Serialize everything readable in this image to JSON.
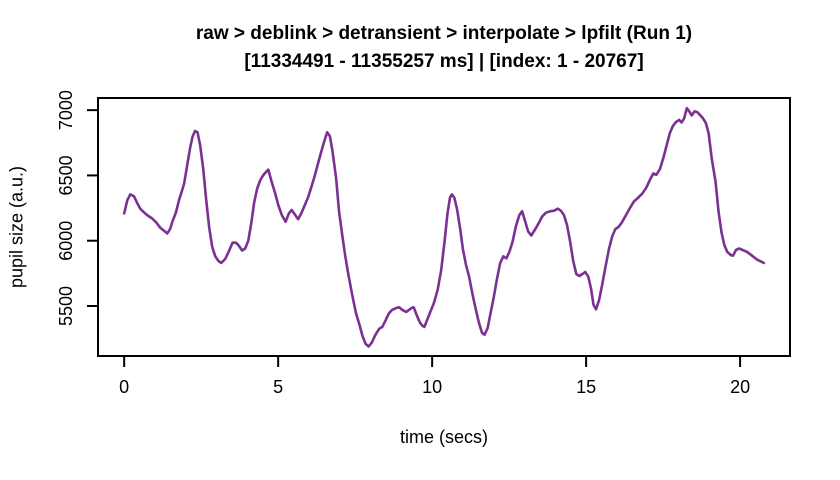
{
  "chart_data": {
    "type": "line",
    "title": "raw > deblink > detransient > interpolate > lpfilt (Run 1)",
    "subtitle": "[11334491 - 11355257 ms] | [index: 1 - 20767]",
    "xlabel": "time (secs)",
    "ylabel": "pupil size (a.u.)",
    "x_ticks": [
      0,
      5,
      10,
      15,
      20
    ],
    "y_ticks": [
      5500,
      6000,
      6500,
      7000
    ],
    "xlim": [
      -0.85,
      21.62
    ],
    "ylim": [
      5117,
      7093
    ],
    "grid": false,
    "legend_position": "none",
    "line_color": "#7b3191",
    "axis_color": "#000000",
    "series": [
      {
        "name": "pupil size (a.u.)",
        "points": [
          [
            0,
            6210
          ],
          [
            0.1,
            6310
          ],
          [
            0.2,
            6355
          ],
          [
            0.32,
            6340
          ],
          [
            0.42,
            6290
          ],
          [
            0.52,
            6245
          ],
          [
            0.65,
            6215
          ],
          [
            0.78,
            6190
          ],
          [
            0.91,
            6170
          ],
          [
            1.04,
            6140
          ],
          [
            1.17,
            6100
          ],
          [
            1.3,
            6075
          ],
          [
            1.4,
            6055
          ],
          [
            1.49,
            6090
          ],
          [
            1.58,
            6155
          ],
          [
            1.68,
            6215
          ],
          [
            1.78,
            6310
          ],
          [
            1.88,
            6385
          ],
          [
            1.95,
            6440
          ],
          [
            2.04,
            6570
          ],
          [
            2.14,
            6710
          ],
          [
            2.22,
            6795
          ],
          [
            2.3,
            6840
          ],
          [
            2.38,
            6830
          ],
          [
            2.47,
            6730
          ],
          [
            2.57,
            6545
          ],
          [
            2.66,
            6320
          ],
          [
            2.76,
            6100
          ],
          [
            2.86,
            5950
          ],
          [
            2.96,
            5880
          ],
          [
            3.06,
            5845
          ],
          [
            3.15,
            5830
          ],
          [
            3.28,
            5860
          ],
          [
            3.41,
            5925
          ],
          [
            3.52,
            5985
          ],
          [
            3.63,
            5985
          ],
          [
            3.73,
            5960
          ],
          [
            3.83,
            5925
          ],
          [
            3.93,
            5940
          ],
          [
            4.03,
            6000
          ],
          [
            4.13,
            6140
          ],
          [
            4.22,
            6290
          ],
          [
            4.32,
            6400
          ],
          [
            4.42,
            6465
          ],
          [
            4.51,
            6500
          ],
          [
            4.6,
            6525
          ],
          [
            4.68,
            6545
          ],
          [
            4.79,
            6450
          ],
          [
            4.9,
            6365
          ],
          [
            5.0,
            6275
          ],
          [
            5.12,
            6195
          ],
          [
            5.24,
            6145
          ],
          [
            5.35,
            6210
          ],
          [
            5.44,
            6235
          ],
          [
            5.56,
            6195
          ],
          [
            5.65,
            6165
          ],
          [
            5.76,
            6215
          ],
          [
            5.86,
            6270
          ],
          [
            5.97,
            6330
          ],
          [
            6.07,
            6405
          ],
          [
            6.18,
            6490
          ],
          [
            6.28,
            6580
          ],
          [
            6.39,
            6675
          ],
          [
            6.49,
            6755
          ],
          [
            6.59,
            6830
          ],
          [
            6.68,
            6800
          ],
          [
            6.76,
            6690
          ],
          [
            6.88,
            6480
          ],
          [
            6.98,
            6220
          ],
          [
            7.08,
            6045
          ],
          [
            7.18,
            5880
          ],
          [
            7.28,
            5740
          ],
          [
            7.4,
            5590
          ],
          [
            7.52,
            5450
          ],
          [
            7.64,
            5355
          ],
          [
            7.74,
            5270
          ],
          [
            7.84,
            5210
          ],
          [
            7.94,
            5190
          ],
          [
            8.04,
            5220
          ],
          [
            8.16,
            5280
          ],
          [
            8.28,
            5325
          ],
          [
            8.38,
            5340
          ],
          [
            8.5,
            5395
          ],
          [
            8.6,
            5445
          ],
          [
            8.7,
            5470
          ],
          [
            8.83,
            5485
          ],
          [
            8.93,
            5490
          ],
          [
            9.03,
            5470
          ],
          [
            9.16,
            5455
          ],
          [
            9.25,
            5470
          ],
          [
            9.33,
            5485
          ],
          [
            9.4,
            5490
          ],
          [
            9.5,
            5430
          ],
          [
            9.6,
            5375
          ],
          [
            9.68,
            5350
          ],
          [
            9.75,
            5340
          ],
          [
            9.85,
            5400
          ],
          [
            9.95,
            5460
          ],
          [
            10.06,
            5525
          ],
          [
            10.18,
            5625
          ],
          [
            10.29,
            5770
          ],
          [
            10.4,
            5990
          ],
          [
            10.5,
            6210
          ],
          [
            10.58,
            6330
          ],
          [
            10.64,
            6355
          ],
          [
            10.72,
            6330
          ],
          [
            10.81,
            6240
          ],
          [
            10.91,
            6090
          ],
          [
            11.0,
            5935
          ],
          [
            11.1,
            5815
          ],
          [
            11.2,
            5725
          ],
          [
            11.31,
            5590
          ],
          [
            11.42,
            5470
          ],
          [
            11.52,
            5370
          ],
          [
            11.62,
            5295
          ],
          [
            11.7,
            5280
          ],
          [
            11.8,
            5330
          ],
          [
            11.9,
            5450
          ],
          [
            12.0,
            5565
          ],
          [
            12.1,
            5700
          ],
          [
            12.21,
            5830
          ],
          [
            12.31,
            5880
          ],
          [
            12.41,
            5865
          ],
          [
            12.51,
            5915
          ],
          [
            12.61,
            5990
          ],
          [
            12.72,
            6110
          ],
          [
            12.83,
            6195
          ],
          [
            12.92,
            6225
          ],
          [
            13.02,
            6150
          ],
          [
            13.12,
            6070
          ],
          [
            13.22,
            6040
          ],
          [
            13.34,
            6085
          ],
          [
            13.45,
            6130
          ],
          [
            13.57,
            6185
          ],
          [
            13.7,
            6215
          ],
          [
            13.83,
            6225
          ],
          [
            13.96,
            6230
          ],
          [
            14.08,
            6245
          ],
          [
            14.18,
            6230
          ],
          [
            14.28,
            6195
          ],
          [
            14.38,
            6120
          ],
          [
            14.48,
            5995
          ],
          [
            14.58,
            5845
          ],
          [
            14.68,
            5745
          ],
          [
            14.78,
            5730
          ],
          [
            14.88,
            5745
          ],
          [
            14.97,
            5760
          ],
          [
            15.07,
            5725
          ],
          [
            15.16,
            5630
          ],
          [
            15.24,
            5510
          ],
          [
            15.32,
            5475
          ],
          [
            15.42,
            5545
          ],
          [
            15.52,
            5660
          ],
          [
            15.63,
            5800
          ],
          [
            15.74,
            5935
          ],
          [
            15.85,
            6035
          ],
          [
            15.95,
            6090
          ],
          [
            16.05,
            6105
          ],
          [
            16.16,
            6140
          ],
          [
            16.29,
            6195
          ],
          [
            16.42,
            6250
          ],
          [
            16.55,
            6300
          ],
          [
            16.69,
            6330
          ],
          [
            16.82,
            6360
          ],
          [
            16.95,
            6405
          ],
          [
            17.08,
            6470
          ],
          [
            17.18,
            6515
          ],
          [
            17.28,
            6505
          ],
          [
            17.4,
            6550
          ],
          [
            17.51,
            6635
          ],
          [
            17.62,
            6735
          ],
          [
            17.72,
            6825
          ],
          [
            17.82,
            6880
          ],
          [
            17.92,
            6910
          ],
          [
            18.02,
            6925
          ],
          [
            18.1,
            6905
          ],
          [
            18.18,
            6935
          ],
          [
            18.27,
            7015
          ],
          [
            18.35,
            6990
          ],
          [
            18.43,
            6960
          ],
          [
            18.52,
            6990
          ],
          [
            18.61,
            6985
          ],
          [
            18.71,
            6960
          ],
          [
            18.8,
            6935
          ],
          [
            18.89,
            6900
          ],
          [
            18.98,
            6820
          ],
          [
            19.08,
            6625
          ],
          [
            19.2,
            6455
          ],
          [
            19.3,
            6220
          ],
          [
            19.4,
            6060
          ],
          [
            19.49,
            5965
          ],
          [
            19.58,
            5915
          ],
          [
            19.7,
            5890
          ],
          [
            19.77,
            5885
          ],
          [
            19.87,
            5930
          ],
          [
            19.97,
            5940
          ],
          [
            20.07,
            5930
          ],
          [
            20.22,
            5915
          ],
          [
            20.39,
            5885
          ],
          [
            20.55,
            5855
          ],
          [
            20.68,
            5840
          ],
          [
            20.77,
            5830
          ]
        ]
      }
    ]
  }
}
